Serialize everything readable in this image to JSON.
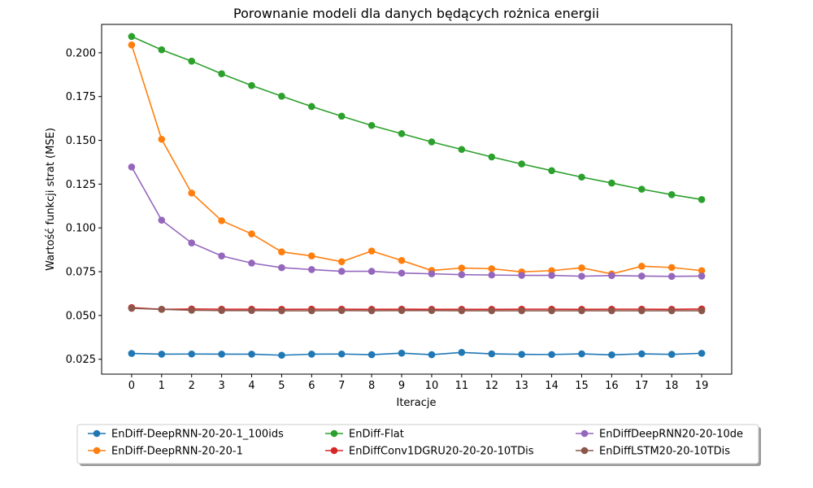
{
  "chart_data": {
    "type": "line",
    "title": "Porownanie modeli dla danych będących rożnica energii",
    "xlabel": "Iteracje",
    "ylabel": "Wartość funkcji strat (MSE)",
    "x": [
      0,
      1,
      2,
      3,
      4,
      5,
      6,
      7,
      8,
      9,
      10,
      11,
      12,
      13,
      14,
      15,
      16,
      17,
      18,
      19
    ],
    "xlim": [
      -1,
      20
    ],
    "ylim": [
      0.0165,
      0.2162
    ],
    "yticks": [
      "0.025",
      "0.050",
      "0.075",
      "0.100",
      "0.125",
      "0.150",
      "0.175",
      "0.200"
    ],
    "grid": false,
    "legend_placement": "bottom-center",
    "series": [
      {
        "name": "EnDiff-DeepRNN-20-20-1_100ids",
        "color": "#1f77b4",
        "values": [
          0.0283,
          0.0279,
          0.028,
          0.0279,
          0.0279,
          0.0273,
          0.0279,
          0.028,
          0.0276,
          0.0285,
          0.0276,
          0.0289,
          0.0281,
          0.0278,
          0.0277,
          0.0281,
          0.0275,
          0.0281,
          0.0278,
          0.0284
        ]
      },
      {
        "name": "EnDiff-DeepRNN-20-20-1",
        "color": "#ff7f0e",
        "values": [
          0.2045,
          0.1506,
          0.1199,
          0.1041,
          0.0966,
          0.0863,
          0.084,
          0.0807,
          0.0868,
          0.0814,
          0.0757,
          0.0771,
          0.0767,
          0.0749,
          0.0756,
          0.0772,
          0.0737,
          0.0781,
          0.0774,
          0.0756
        ]
      },
      {
        "name": "EnDiff-Flat",
        "color": "#2ca02c",
        "values": [
          0.2093,
          0.2017,
          0.1952,
          0.188,
          0.1813,
          0.1752,
          0.1693,
          0.1638,
          0.1585,
          0.1538,
          0.1491,
          0.1448,
          0.1405,
          0.1365,
          0.1327,
          0.129,
          0.1256,
          0.1221,
          0.119,
          0.1162
        ]
      },
      {
        "name": "EnDiffConv1DGRU20-20-20-10TDis",
        "color": "#d62728",
        "values": [
          0.0545,
          0.0535,
          0.0537,
          0.0536,
          0.0536,
          0.0535,
          0.0536,
          0.0536,
          0.0535,
          0.0536,
          0.0535,
          0.0535,
          0.0535,
          0.0536,
          0.0536,
          0.0535,
          0.0536,
          0.0536,
          0.0535,
          0.0537
        ]
      },
      {
        "name": "EnDiffDeepRNN20-20-10de",
        "color": "#9467bd",
        "values": [
          0.1348,
          0.1044,
          0.0914,
          0.084,
          0.0799,
          0.0773,
          0.0762,
          0.0752,
          0.0752,
          0.0742,
          0.0738,
          0.0733,
          0.0731,
          0.0729,
          0.0729,
          0.0724,
          0.0728,
          0.0725,
          0.0723,
          0.0725
        ]
      },
      {
        "name": "EnDiffLSTM20-20-10TDis",
        "color": "#8c564b",
        "values": [
          0.0541,
          0.0535,
          0.053,
          0.0528,
          0.0528,
          0.0527,
          0.0527,
          0.0528,
          0.0527,
          0.0528,
          0.0528,
          0.0527,
          0.0527,
          0.0527,
          0.0527,
          0.0527,
          0.0527,
          0.0527,
          0.0527,
          0.0527
        ]
      }
    ]
  }
}
